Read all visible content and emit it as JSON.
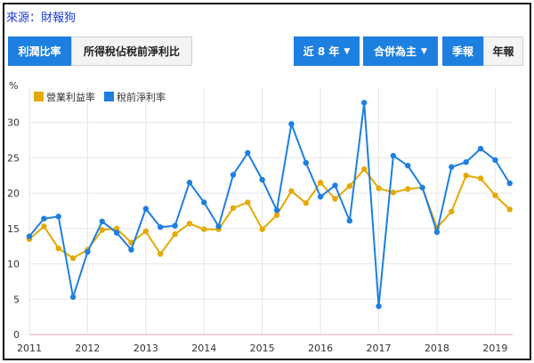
{
  "source_label": "來源：財報狗",
  "tabs": {
    "left": [
      {
        "label": "利潤比率",
        "active": true
      },
      {
        "label": "所得稅佔稅前淨利比",
        "active": false
      }
    ],
    "range": "近 8 年",
    "consolidation": "合併為主",
    "period_quarter": "季報",
    "period_year": "年報"
  },
  "colors": {
    "accent": "#1d7fe0",
    "operating_margin": "#e4a900",
    "pretax_margin": "#1d7fe0"
  },
  "chart_data": {
    "type": "line",
    "ylabel": "%",
    "ylim": [
      0,
      35
    ],
    "yticks": [
      0,
      5,
      10,
      15,
      20,
      25,
      30
    ],
    "xlim": [
      2011,
      2019.3
    ],
    "xticks": [
      2011,
      2012,
      2013,
      2014,
      2015,
      2016,
      2017,
      2018,
      2019
    ],
    "legend_position": "top-left",
    "grid": true,
    "x": [
      2011.0,
      2011.25,
      2011.5,
      2011.75,
      2012.0,
      2012.25,
      2012.5,
      2012.75,
      2013.0,
      2013.25,
      2013.5,
      2013.75,
      2014.0,
      2014.25,
      2014.5,
      2014.75,
      2015.0,
      2015.25,
      2015.5,
      2015.75,
      2016.0,
      2016.25,
      2016.5,
      2016.75,
      2017.0,
      2017.25,
      2017.5,
      2017.75,
      2018.0,
      2018.25,
      2018.5,
      2018.75,
      2019.0,
      2019.25
    ],
    "series": [
      {
        "name": "營業利益率",
        "values": [
          13.5,
          15.3,
          12.2,
          10.8,
          12.0,
          14.8,
          15.0,
          13.0,
          14.6,
          11.4,
          14.2,
          15.7,
          14.9,
          14.9,
          17.9,
          18.7,
          14.9,
          16.9,
          20.3,
          18.6,
          21.5,
          19.2,
          21.0,
          23.4,
          20.7,
          20.1,
          20.6,
          20.8,
          15.1,
          17.4,
          22.5,
          22.1,
          19.7,
          17.7
        ]
      },
      {
        "name": "稅前淨利率",
        "values": [
          13.9,
          16.4,
          16.7,
          5.3,
          11.7,
          16.0,
          14.4,
          12.0,
          17.8,
          15.2,
          15.4,
          21.5,
          18.7,
          15.3,
          22.6,
          25.7,
          21.9,
          17.6,
          29.8,
          24.3,
          19.5,
          21.1,
          16.1,
          32.8,
          4.0,
          25.3,
          23.9,
          20.8,
          14.5,
          23.7,
          24.4,
          26.3,
          24.7,
          21.4
        ]
      }
    ]
  }
}
